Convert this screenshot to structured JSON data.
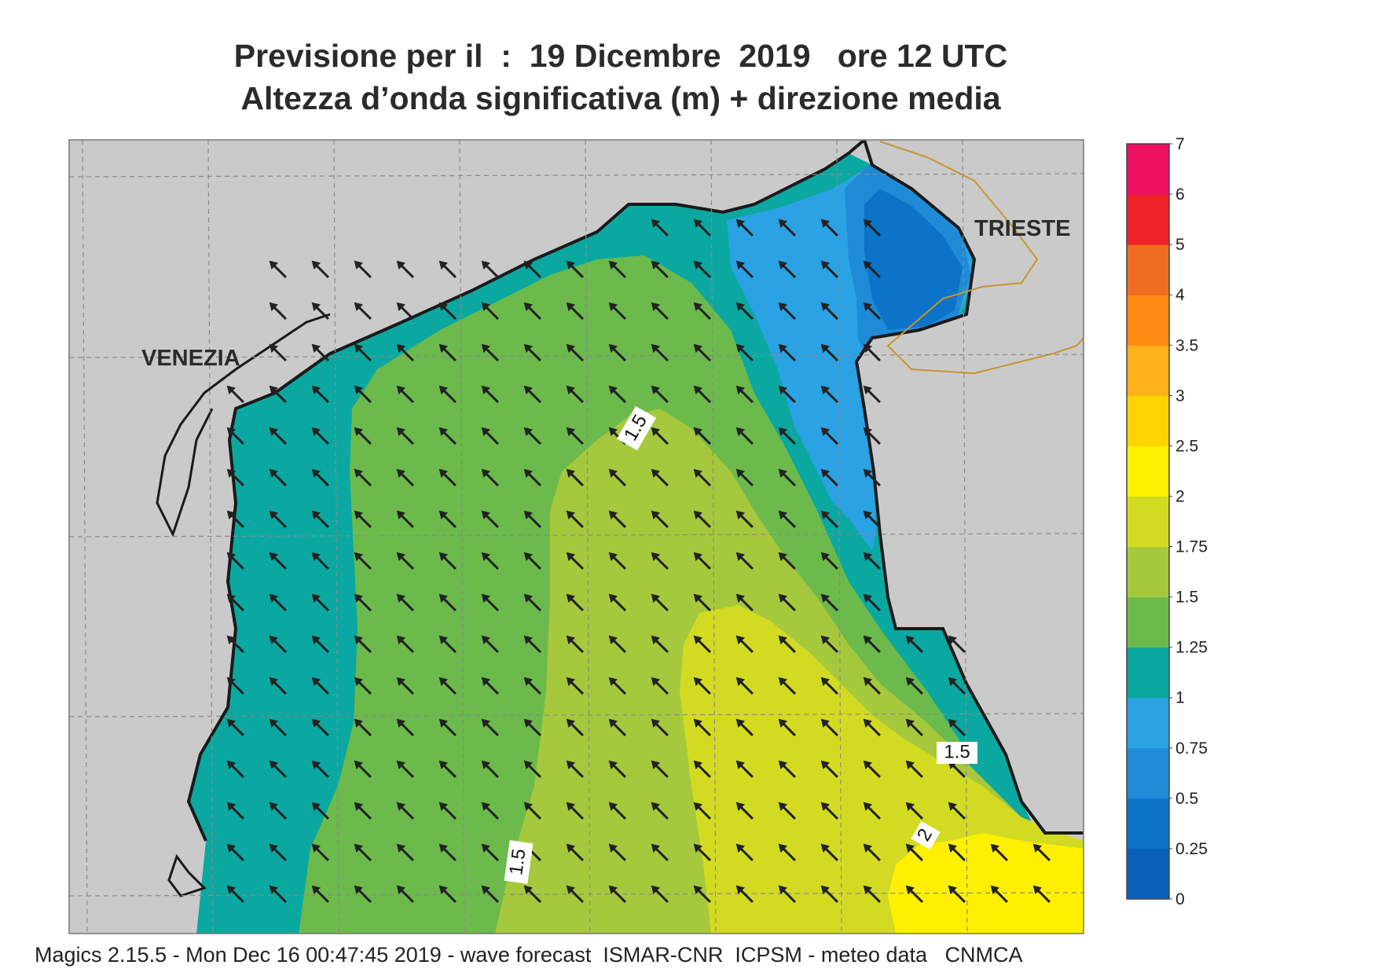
{
  "title": {
    "line1": "Previsione per il  :  19 Dicembre  2019   ore 12 UTC",
    "line2": "Altezza d’onda significativa (m) + direzione media"
  },
  "footer": "Magics 2.15.5 - Mon Dec 16 00:47:45 2019 - wave forecast  ISMAR-CNR  ICPSM - meteo data   CNMCA",
  "places": [
    {
      "name": "VENEZIA"
    },
    {
      "name": "TRIESTE"
    }
  ],
  "contour_labels": [
    "1.5",
    "1.5",
    "1.5",
    "2"
  ],
  "colorbar": {
    "ticks": [
      "0",
      "0.25",
      "0.5",
      "0.75",
      "1",
      "1.25",
      "1.5",
      "1.75",
      "2",
      "2.5",
      "3",
      "3.5",
      "4",
      "5",
      "6",
      "7"
    ],
    "colors": [
      "#0a60b8",
      "#0b74c8",
      "#1f8ad6",
      "#2aa2e4",
      "#0aa8a0",
      "#6cba4c",
      "#a6c83c",
      "#d2db22",
      "#fff000",
      "#ffd400",
      "#ffb21a",
      "#ff8a14",
      "#f06e22",
      "#ee2228",
      "#ee1060"
    ]
  },
  "colors": {
    "land": "#cacaca",
    "coast": "#1a1a1a",
    "border": "#c8942e",
    "grid": "#8a8a8a"
  },
  "wave_direction": "north-west",
  "chart_data": {
    "type": "heatmap",
    "variable": "Altezza d’onda significativa (m)",
    "ticks": [
      0,
      0.25,
      0.5,
      0.75,
      1,
      1.25,
      1.5,
      1.75,
      2,
      2.5,
      3,
      3.5,
      4,
      5,
      6,
      7
    ],
    "contours_labelled": [
      1.5,
      1.5,
      1.5,
      2
    ]
  }
}
